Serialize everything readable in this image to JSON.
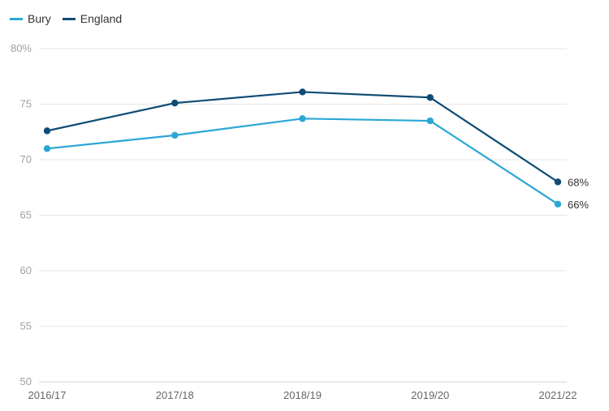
{
  "chart_data": {
    "type": "line",
    "categories": [
      "2016/17",
      "2017/18",
      "2018/19",
      "2019/20",
      "2021/22"
    ],
    "y_ticks": [
      "80%",
      "75",
      "70",
      "65",
      "60",
      "55",
      "50"
    ],
    "ylim": [
      50,
      80
    ],
    "grid": true,
    "legend_position": "top-left",
    "series": [
      {
        "name": "Bury",
        "color": "#2aa6d6",
        "values": [
          71.0,
          72.2,
          73.7,
          73.5,
          66.0
        ],
        "end_label": "66%"
      },
      {
        "name": "England",
        "color": "#0f4c75",
        "values": [
          72.6,
          75.1,
          76.1,
          75.6,
          68.0
        ],
        "end_label": "68%"
      }
    ]
  }
}
